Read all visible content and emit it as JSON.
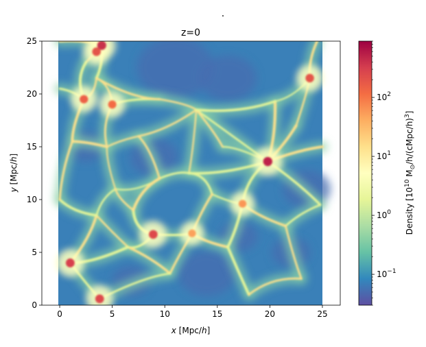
{
  "figure": {
    "suptitle": "."
  },
  "chart_data": {
    "type": "heatmap",
    "title": "z=0",
    "xlabel": "x [Mpc/h]",
    "ylabel": "y [Mpc/h]",
    "xlim": [
      -1.7,
      26.7
    ],
    "ylim": [
      0,
      25
    ],
    "image_extent": [
      0,
      25,
      0,
      25
    ],
    "xticks": [
      0,
      5,
      10,
      15,
      20,
      25
    ],
    "yticks": [
      0,
      5,
      10,
      15,
      20,
      25
    ],
    "colorbar": {
      "label": "Density [10^10 M⊙/h/(cMpc/h)^3]",
      "scale": "log",
      "range": [
        0.03,
        900
      ],
      "ticks": [
        {
          "value": 0.1,
          "base": "10",
          "exp": "−1"
        },
        {
          "value": 1,
          "base": "10",
          "exp": "0"
        },
        {
          "value": 10,
          "base": "10",
          "exp": "1"
        },
        {
          "value": 100,
          "base": "10",
          "exp": "2"
        }
      ],
      "colormap": "Spectral_r"
    },
    "colormap_stops": [
      "#5e4fa2",
      "#3288bd",
      "#66c2a5",
      "#abdda4",
      "#e6f598",
      "#ffffbf",
      "#fee08b",
      "#fdae61",
      "#f46d43",
      "#d53e4f",
      "#9e0142"
    ],
    "filament_colors": [
      "#e6f598",
      "#fee08b"
    ],
    "halos": [
      {
        "x": 19.8,
        "y": 13.6,
        "density": 500
      },
      {
        "x": 4.0,
        "y": 24.6,
        "density": 400
      },
      {
        "x": 1.0,
        "y": 4.0,
        "density": 300
      },
      {
        "x": 3.8,
        "y": 0.6,
        "density": 250
      },
      {
        "x": 8.9,
        "y": 6.7,
        "density": 250
      },
      {
        "x": 23.8,
        "y": 21.5,
        "density": 200
      },
      {
        "x": 2.3,
        "y": 19.5,
        "density": 150
      },
      {
        "x": 5.0,
        "y": 19.0,
        "density": 120
      },
      {
        "x": 3.5,
        "y": 24.0,
        "density": 200
      },
      {
        "x": 17.4,
        "y": 9.6,
        "density": 60
      },
      {
        "x": 12.6,
        "y": 6.8,
        "density": 50
      }
    ]
  }
}
